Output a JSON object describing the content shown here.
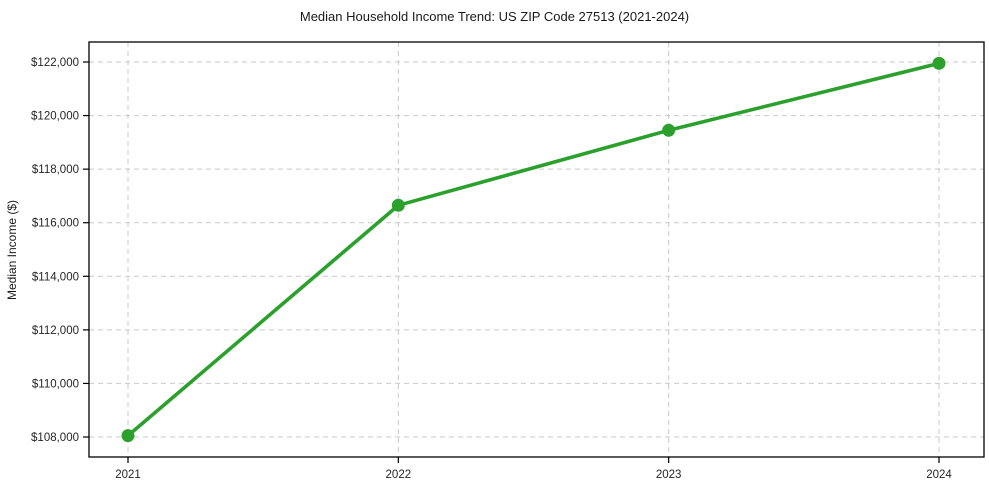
{
  "chart_data": {
    "type": "line",
    "title": "Median Household Income Trend: US ZIP Code 27513 (2021-2024)",
    "xlabel": "",
    "ylabel": "Median Income ($)",
    "x": [
      2021,
      2022,
      2023,
      2024
    ],
    "values": [
      108050,
      116650,
      119450,
      121950
    ],
    "x_tick_labels": [
      "2021",
      "2022",
      "2023",
      "2024"
    ],
    "y_ticks": [
      108000,
      110000,
      112000,
      114000,
      116000,
      118000,
      120000,
      122000
    ],
    "y_tick_labels": [
      "$108,000",
      "$110,000",
      "$112,000",
      "$114,000",
      "$116,000",
      "$118,000",
      "$120,000",
      "$122,000"
    ],
    "ylim": [
      107300,
      122750
    ],
    "xlim": [
      2020.86,
      2024.17
    ],
    "grid": true,
    "grid_style": "dashed",
    "legend": "none",
    "line_color": "#2ca02c",
    "marker_color": "#2ca02c",
    "grid_color": "#c9c9c9",
    "frame_color": "#000000",
    "background": "#ffffff"
  }
}
